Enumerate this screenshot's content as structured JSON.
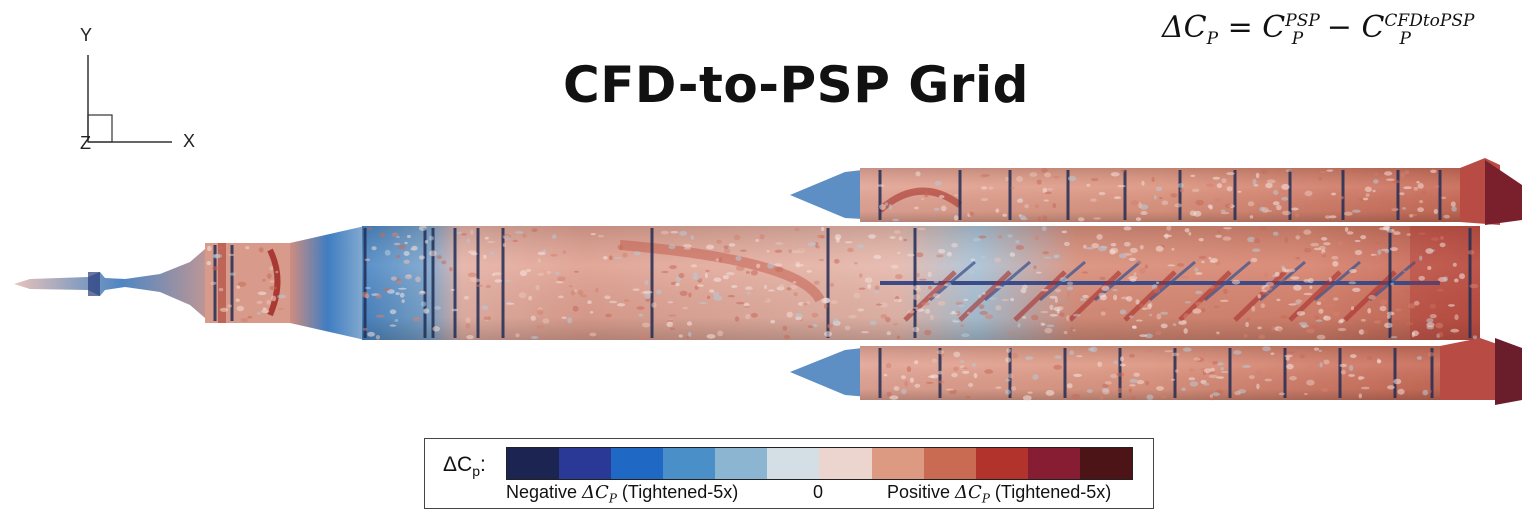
{
  "title": "CFD-to-PSP Grid",
  "equation": {
    "lhs": "ΔC",
    "lhs_sub": "P",
    "eq": " = C",
    "t1_sup": "PSP",
    "t1_sub": "P",
    "minus": " − C",
    "t2_sup": "CFDtoPSP",
    "t2_sub": "P"
  },
  "axes": {
    "y": "Y",
    "x": "X",
    "z": "Z"
  },
  "legend": {
    "title": "ΔC",
    "title_sub": "p",
    "title_suffix": ":",
    "negative_prefix": "Negative ",
    "negative_symbol": "ΔC",
    "negative_sub": "P",
    "negative_suffix": " (Tightened-5x)",
    "zero": "0",
    "positive_prefix": "Positive ",
    "positive_symbol": "ΔC",
    "positive_sub": "P",
    "positive_suffix": " (Tightened-5x)",
    "colors": [
      "#1c2452",
      "#2a3996",
      "#1f68c4",
      "#4b8fc9",
      "#8cb5d1",
      "#d3dfe4",
      "#ecd4cf",
      "#dc9a82",
      "#c96a52",
      "#b2322c",
      "#861d33",
      "#4d1418"
    ]
  }
}
